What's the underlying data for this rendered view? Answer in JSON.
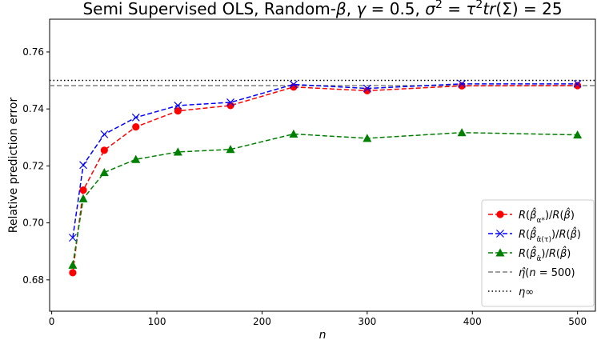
{
  "chart_data": {
    "type": "line",
    "title": "Semi Supervised OLS, Random-β, γ = 0.5, σ² = τ²tr(Σ) = 25",
    "xlabel": "n",
    "ylabel": "Relative prediction error",
    "xlim": [
      -2,
      517
    ],
    "ylim": [
      0.669,
      0.7715
    ],
    "xticks": [
      0,
      100,
      200,
      300,
      400,
      500
    ],
    "yticks": [
      0.68,
      0.7,
      0.72,
      0.74,
      0.76
    ],
    "xtick_labels": [
      "0",
      "100",
      "200",
      "300",
      "400",
      "500"
    ],
    "ytick_labels": [
      "0.68",
      "0.70",
      "0.72",
      "0.74",
      "0.76"
    ],
    "grid": false,
    "legend_position": "lower-right",
    "x": [
      20,
      30,
      50,
      80,
      120,
      170,
      230,
      300,
      390,
      500
    ],
    "series": [
      {
        "name": "R(β̂_α*)/R(β̂)",
        "values": [
          0.6825,
          0.7115,
          0.7255,
          0.7337,
          0.7393,
          0.7412,
          0.7477,
          0.7464,
          0.7481,
          0.7482
        ],
        "color": "#ff0000",
        "line_style": "dashed",
        "marker": "circle"
      },
      {
        "name": "R(β̂_α̂(τ))/R(β̂)",
        "values": [
          0.6948,
          0.7203,
          0.7311,
          0.737,
          0.7412,
          0.7423,
          0.7486,
          0.7472,
          0.7488,
          0.7488
        ],
        "color": "#0000ff",
        "line_style": "dashed",
        "marker": "x"
      },
      {
        "name": "R(β̂_α̂)/R(β̂)",
        "values": [
          0.6852,
          0.7085,
          0.7177,
          0.7223,
          0.7249,
          0.7258,
          0.7312,
          0.7297,
          0.7317,
          0.7309
        ],
        "color": "#008000",
        "line_style": "dashed",
        "marker": "triangle"
      }
    ],
    "reference_lines": [
      {
        "name": "η̂(n = 500)",
        "value": 0.7482,
        "color": "#808080",
        "line_style": "dashed"
      },
      {
        "name": "η∞",
        "value": 0.75,
        "color": "#000000",
        "line_style": "dotted"
      }
    ]
  }
}
